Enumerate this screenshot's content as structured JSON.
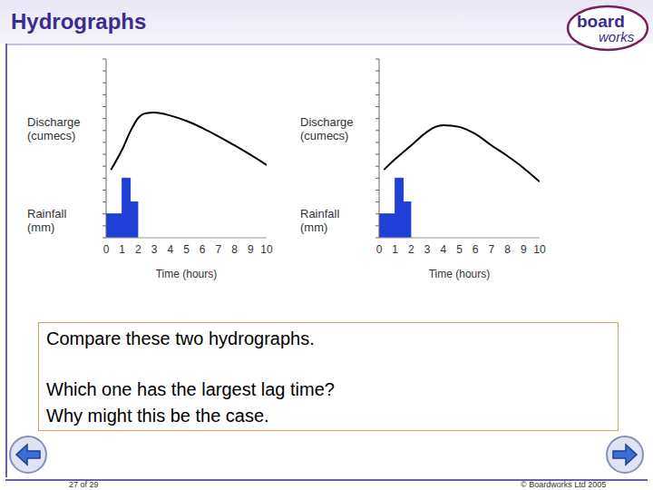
{
  "title": "Hydrographs",
  "logo": [
    "board",
    "works"
  ],
  "chart_data": [
    {
      "type": "line",
      "xlabel": "Time (hours)",
      "xlim": [
        0,
        10
      ],
      "xticks": [
        0,
        1,
        2,
        3,
        4,
        5,
        6,
        7,
        8,
        9,
        10
      ],
      "ylim": [
        0,
        30
      ],
      "yticks": [
        0,
        2,
        4,
        6,
        8,
        10,
        12,
        14,
        16,
        18,
        20,
        22,
        24,
        26,
        28,
        30
      ],
      "tick_labels": "x",
      "grid": false,
      "discharge": {
        "label": "Discharge (cumecs)",
        "color": "#000000",
        "x": [
          0.3,
          1,
          1.5,
          2,
          2.5,
          3,
          4,
          5,
          6,
          7,
          8,
          9,
          10
        ],
        "values": [
          11.4,
          14.8,
          17.8,
          20.1,
          20.9,
          21.0,
          20.5,
          19.6,
          18.4,
          17.0,
          15.5,
          13.9,
          12.2
        ]
      },
      "rainfall": {
        "label": "Rainfall (mm)",
        "type": "histogram",
        "color": "#1f3fd6",
        "bins": [
          0,
          1,
          1.5,
          2
        ],
        "values": [
          4,
          10,
          6
        ]
      }
    },
    {
      "type": "line",
      "xlabel": "Time (hours)",
      "xlim": [
        0,
        10
      ],
      "xticks": [
        0,
        1,
        2,
        3,
        4,
        5,
        6,
        7,
        8,
        9,
        10
      ],
      "ylim": [
        0,
        30
      ],
      "yticks": [
        0,
        2,
        4,
        6,
        8,
        10,
        12,
        14,
        16,
        18,
        20,
        22,
        24,
        26,
        28,
        30
      ],
      "tick_labels": "x",
      "grid": false,
      "discharge": {
        "label": "Discharge (cumecs)",
        "color": "#000000",
        "x": [
          0.3,
          1,
          2,
          3,
          3.5,
          4,
          5,
          6,
          7,
          8,
          9,
          10
        ],
        "values": [
          11.4,
          13.2,
          15.5,
          17.8,
          18.6,
          18.9,
          18.6,
          17.4,
          15.5,
          13.7,
          11.7,
          9.4
        ]
      },
      "rainfall": {
        "label": "Rainfall (mm)",
        "type": "histogram",
        "color": "#1f3fd6",
        "bins": [
          0,
          1,
          1.5,
          2
        ],
        "values": [
          4,
          10,
          6
        ]
      }
    }
  ],
  "question": [
    "Compare these two hydrographs.",
    "Which one has the largest lag time?",
    "Why might this be the case."
  ],
  "footer": {
    "page": "27 of 29",
    "copyright": "© Boardworks Ltd 2005"
  }
}
